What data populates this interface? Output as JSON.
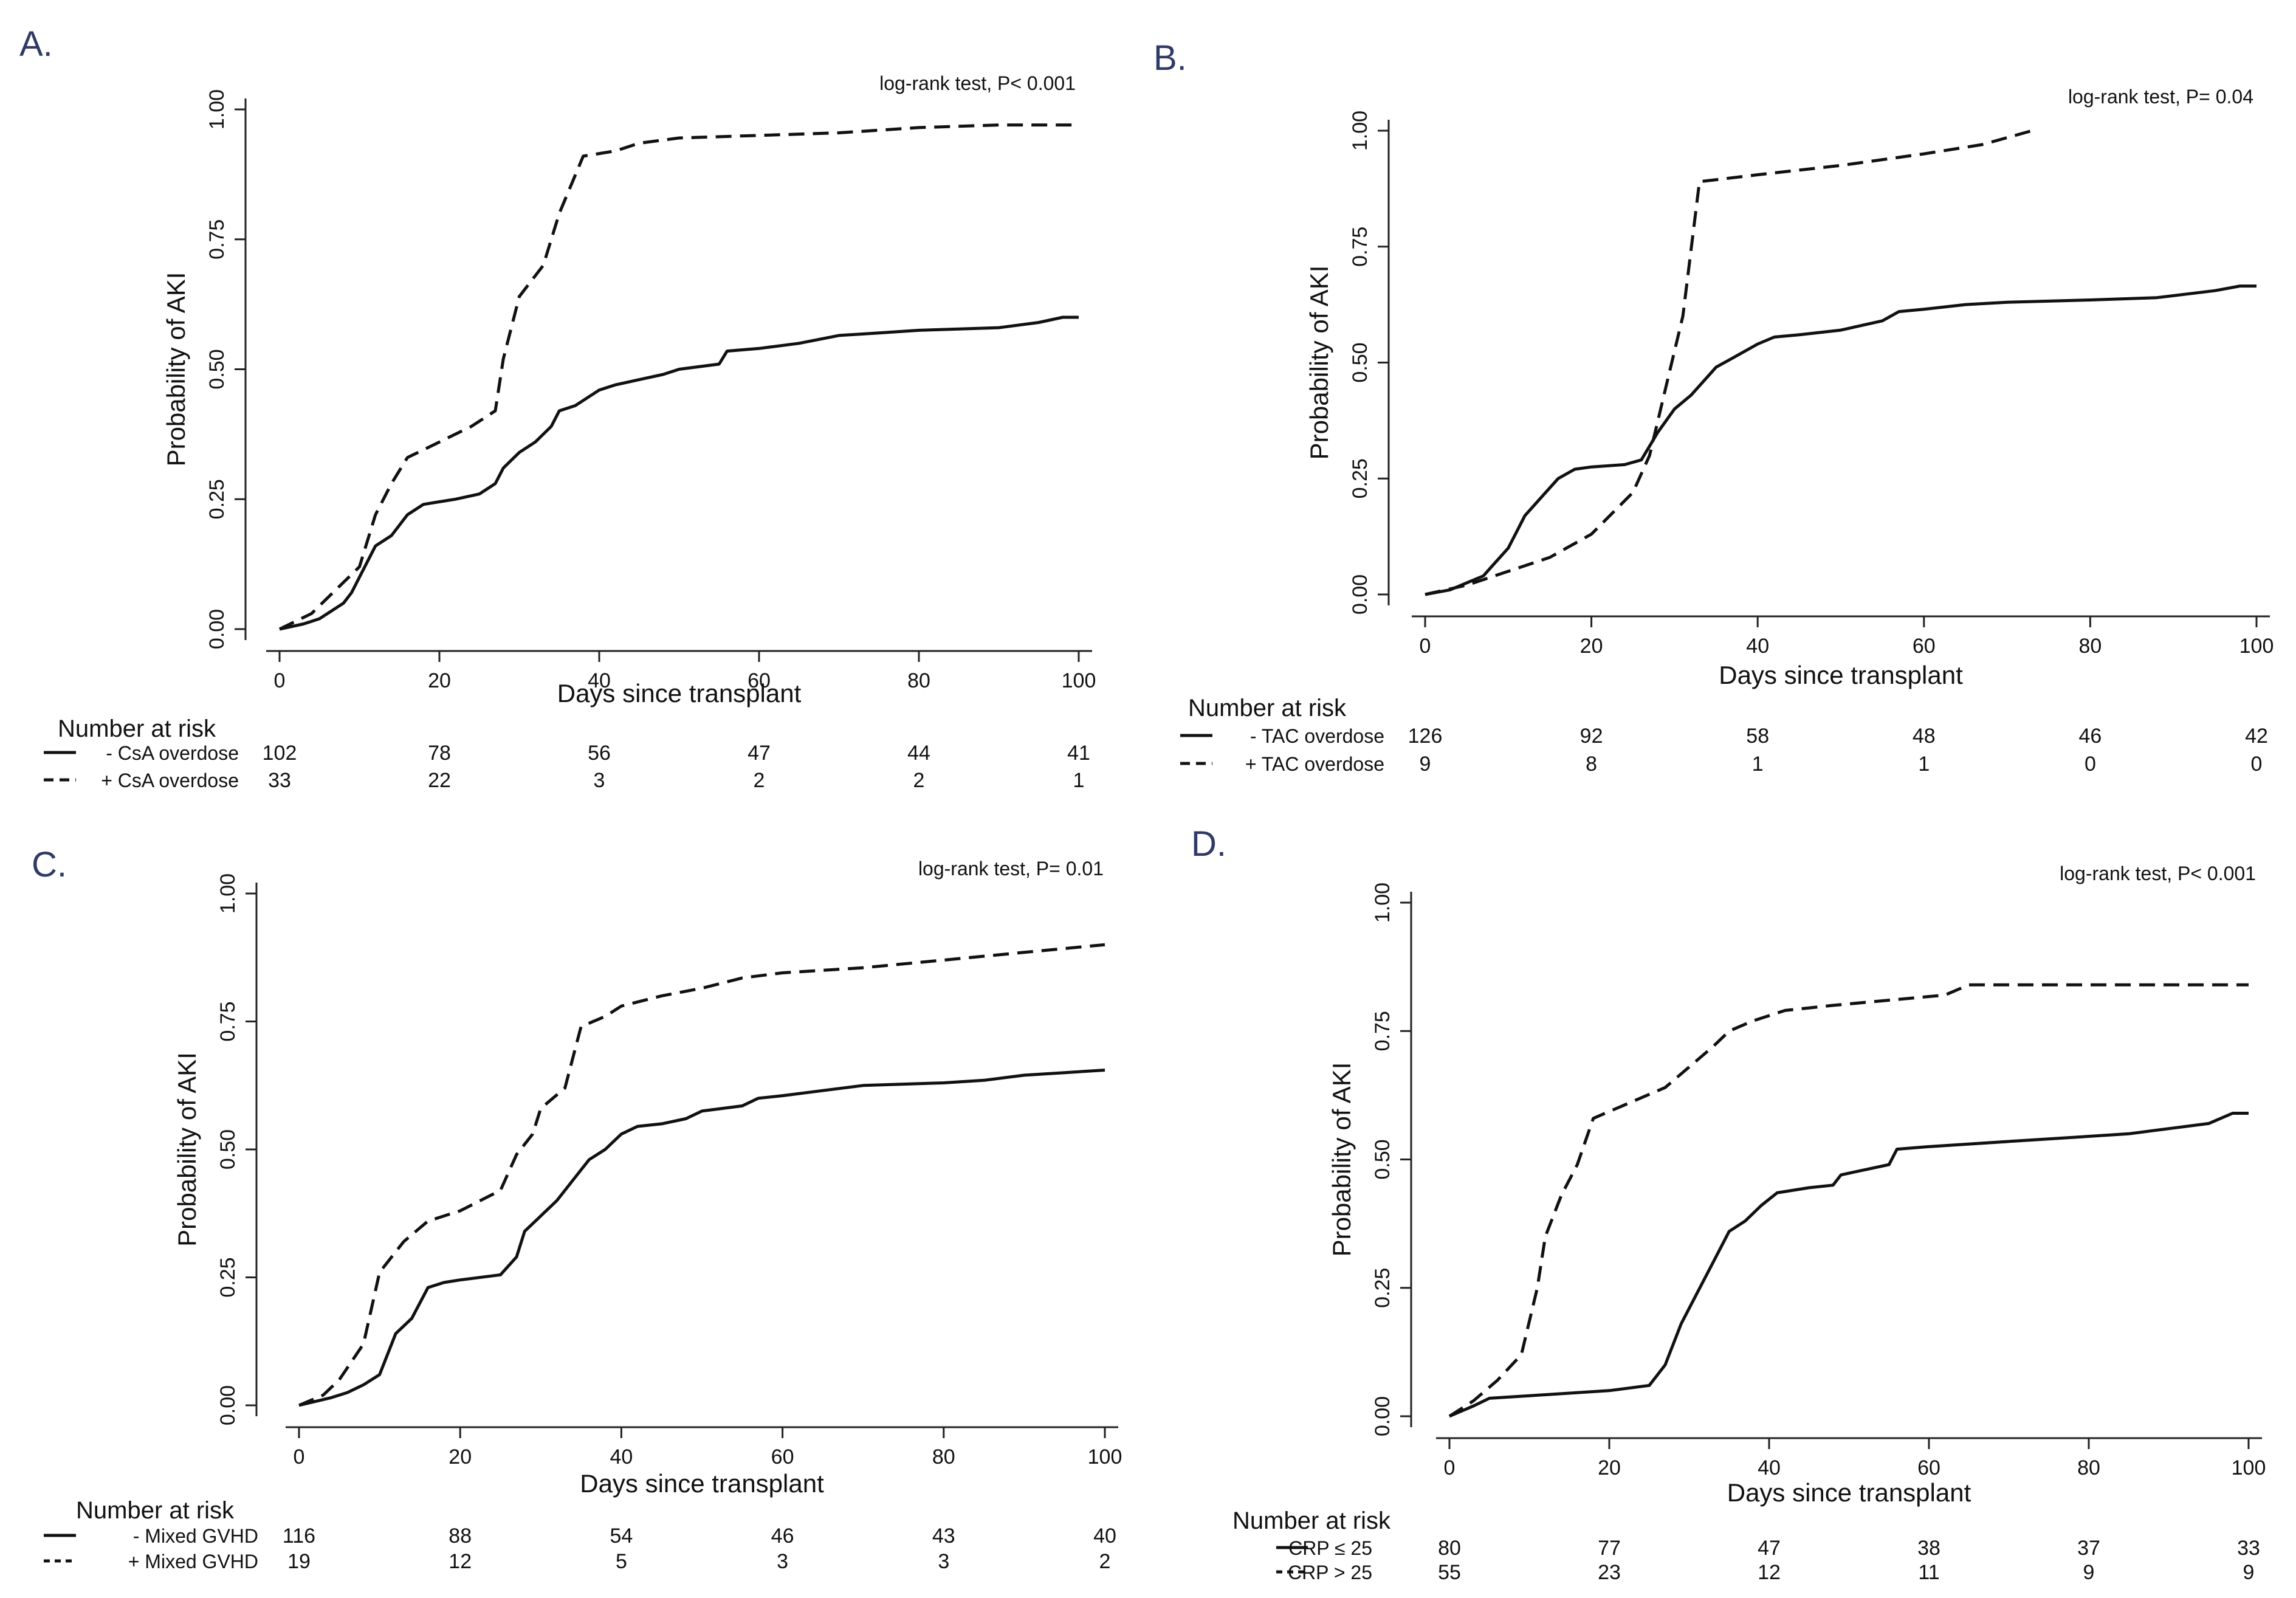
{
  "figure": {
    "x_axis_label": "Days since transplant",
    "y_axis_label": "Probability of AKI",
    "risk_table_title": "Number at risk"
  },
  "chart_data": [
    {
      "panel": "A.",
      "type": "line",
      "title": "",
      "annotation": "log-rank test, P< 0.001",
      "xlabel": "Days since transplant",
      "ylabel": "Probability of AKI",
      "xlim": [
        0,
        100
      ],
      "ylim": [
        0,
        1
      ],
      "x_ticks": [
        "0",
        "20",
        "40",
        "60",
        "80",
        "100"
      ],
      "y_ticks": [
        "0.00",
        "0.25",
        "0.50",
        "0.75",
        "1.00"
      ],
      "x": [
        0,
        20,
        40,
        60,
        80,
        100
      ],
      "series": [
        {
          "name": "- CsA overdose",
          "style": "solid",
          "points": [
            [
              0,
              0
            ],
            [
              3,
              0.01
            ],
            [
              5,
              0.02
            ],
            [
              8,
              0.05
            ],
            [
              9,
              0.07
            ],
            [
              10,
              0.1
            ],
            [
              12,
              0.16
            ],
            [
              14,
              0.18
            ],
            [
              16,
              0.22
            ],
            [
              18,
              0.24
            ],
            [
              20,
              0.245
            ],
            [
              22,
              0.25
            ],
            [
              25,
              0.26
            ],
            [
              27,
              0.28
            ],
            [
              28,
              0.31
            ],
            [
              30,
              0.34
            ],
            [
              32,
              0.36
            ],
            [
              34,
              0.39
            ],
            [
              35,
              0.42
            ],
            [
              37,
              0.43
            ],
            [
              38,
              0.44
            ],
            [
              40,
              0.46
            ],
            [
              42,
              0.47
            ],
            [
              45,
              0.48
            ],
            [
              48,
              0.49
            ],
            [
              50,
              0.5
            ],
            [
              55,
              0.51
            ],
            [
              56,
              0.535
            ],
            [
              60,
              0.54
            ],
            [
              65,
              0.55
            ],
            [
              70,
              0.565
            ],
            [
              75,
              0.57
            ],
            [
              80,
              0.575
            ],
            [
              90,
              0.58
            ],
            [
              95,
              0.59
            ],
            [
              98,
              0.6
            ],
            [
              100,
              0.6
            ]
          ],
          "risk_numbers": [
            "102",
            "78",
            "56",
            "47",
            "44",
            "41"
          ]
        },
        {
          "name": "+ CsA overdose",
          "style": "dashed",
          "points": [
            [
              0,
              0
            ],
            [
              4,
              0.03
            ],
            [
              6,
              0.06
            ],
            [
              10,
              0.12
            ],
            [
              12,
              0.22
            ],
            [
              14,
              0.28
            ],
            [
              16,
              0.33
            ],
            [
              20,
              0.36
            ],
            [
              24,
              0.39
            ],
            [
              27,
              0.42
            ],
            [
              28,
              0.52
            ],
            [
              30,
              0.64
            ],
            [
              32,
              0.68
            ],
            [
              33,
              0.7
            ],
            [
              35,
              0.8
            ],
            [
              38,
              0.91
            ],
            [
              42,
              0.92
            ],
            [
              45,
              0.935
            ],
            [
              50,
              0.945
            ],
            [
              60,
              0.95
            ],
            [
              70,
              0.955
            ],
            [
              80,
              0.965
            ],
            [
              90,
              0.97
            ],
            [
              100,
              0.97
            ]
          ],
          "risk_numbers": [
            "33",
            "22",
            "3",
            "2",
            "2",
            "1"
          ]
        }
      ]
    },
    {
      "panel": "B.",
      "type": "line",
      "title": "",
      "annotation": "log-rank test, P= 0.04",
      "xlabel": "Days since transplant",
      "ylabel": "Probability of AKI",
      "xlim": [
        0,
        100
      ],
      "ylim": [
        0,
        1
      ],
      "x_ticks": [
        "0",
        "20",
        "40",
        "60",
        "80",
        "100"
      ],
      "y_ticks": [
        "0.00",
        "0.25",
        "0.50",
        "0.75",
        "1.00"
      ],
      "x": [
        0,
        20,
        40,
        60,
        80,
        100
      ],
      "series": [
        {
          "name": "- TAC overdose",
          "style": "solid",
          "points": [
            [
              0,
              0
            ],
            [
              3,
              0.01
            ],
            [
              5,
              0.025
            ],
            [
              7,
              0.04
            ],
            [
              8,
              0.06
            ],
            [
              10,
              0.1
            ],
            [
              12,
              0.17
            ],
            [
              14,
              0.21
            ],
            [
              16,
              0.25
            ],
            [
              18,
              0.27
            ],
            [
              20,
              0.275
            ],
            [
              24,
              0.28
            ],
            [
              26,
              0.29
            ],
            [
              27,
              0.32
            ],
            [
              28,
              0.35
            ],
            [
              30,
              0.4
            ],
            [
              32,
              0.43
            ],
            [
              34,
              0.47
            ],
            [
              35,
              0.49
            ],
            [
              37,
              0.51
            ],
            [
              40,
              0.54
            ],
            [
              42,
              0.555
            ],
            [
              45,
              0.56
            ],
            [
              50,
              0.57
            ],
            [
              55,
              0.59
            ],
            [
              57,
              0.61
            ],
            [
              60,
              0.615
            ],
            [
              65,
              0.625
            ],
            [
              70,
              0.63
            ],
            [
              80,
              0.635
            ],
            [
              88,
              0.64
            ],
            [
              95,
              0.655
            ],
            [
              98,
              0.665
            ],
            [
              100,
              0.665
            ]
          ],
          "risk_numbers": [
            "126",
            "92",
            "58",
            "48",
            "46",
            "42"
          ]
        },
        {
          "name": "+ TAC overdose",
          "style": "dashed",
          "points": [
            [
              0,
              0
            ],
            [
              5,
              0.02
            ],
            [
              10,
              0.05
            ],
            [
              15,
              0.08
            ],
            [
              20,
              0.13
            ],
            [
              25,
              0.22
            ],
            [
              27,
              0.3
            ],
            [
              29,
              0.45
            ],
            [
              31,
              0.6
            ],
            [
              33,
              0.89
            ],
            [
              40,
              0.905
            ],
            [
              50,
              0.925
            ],
            [
              60,
              0.95
            ],
            [
              67,
              0.97
            ],
            [
              73,
              1.0
            ]
          ],
          "risk_numbers": [
            "9",
            "8",
            "1",
            "1",
            "0",
            "0"
          ]
        }
      ]
    },
    {
      "panel": "C.",
      "type": "line",
      "title": "",
      "annotation": "log-rank test, P= 0.01",
      "xlabel": "Days since transplant",
      "ylabel": "Probability of AKI",
      "xlim": [
        0,
        100
      ],
      "ylim": [
        0,
        1
      ],
      "x_ticks": [
        "0",
        "20",
        "40",
        "60",
        "80",
        "100"
      ],
      "y_ticks": [
        "0.00",
        "0.25",
        "0.50",
        "0.75",
        "1.00"
      ],
      "x": [
        0,
        20,
        40,
        60,
        80,
        100
      ],
      "series": [
        {
          "name": "- Mixed GVHD",
          "style": "solid",
          "points": [
            [
              0,
              0
            ],
            [
              4,
              0.015
            ],
            [
              6,
              0.025
            ],
            [
              8,
              0.04
            ],
            [
              10,
              0.06
            ],
            [
              12,
              0.14
            ],
            [
              14,
              0.17
            ],
            [
              16,
              0.23
            ],
            [
              18,
              0.24
            ],
            [
              20,
              0.245
            ],
            [
              25,
              0.255
            ],
            [
              27,
              0.29
            ],
            [
              28,
              0.34
            ],
            [
              30,
              0.37
            ],
            [
              32,
              0.4
            ],
            [
              34,
              0.44
            ],
            [
              36,
              0.48
            ],
            [
              38,
              0.5
            ],
            [
              40,
              0.53
            ],
            [
              42,
              0.545
            ],
            [
              45,
              0.55
            ],
            [
              48,
              0.56
            ],
            [
              50,
              0.575
            ],
            [
              55,
              0.585
            ],
            [
              57,
              0.6
            ],
            [
              60,
              0.605
            ],
            [
              65,
              0.615
            ],
            [
              70,
              0.625
            ],
            [
              80,
              0.63
            ],
            [
              85,
              0.635
            ],
            [
              90,
              0.645
            ],
            [
              95,
              0.65
            ],
            [
              100,
              0.655
            ]
          ],
          "risk_numbers": [
            "116",
            "88",
            "54",
            "46",
            "43",
            "40"
          ]
        },
        {
          "name": "+ Mixed GVHD",
          "style": "dashed",
          "points": [
            [
              0,
              0
            ],
            [
              3,
              0.02
            ],
            [
              5,
              0.05
            ],
            [
              8,
              0.12
            ],
            [
              10,
              0.26
            ],
            [
              13,
              0.32
            ],
            [
              16,
              0.36
            ],
            [
              20,
              0.38
            ],
            [
              25,
              0.42
            ],
            [
              27,
              0.49
            ],
            [
              29,
              0.53
            ],
            [
              30,
              0.58
            ],
            [
              33,
              0.62
            ],
            [
              35,
              0.74
            ],
            [
              38,
              0.76
            ],
            [
              40,
              0.78
            ],
            [
              45,
              0.8
            ],
            [
              50,
              0.815
            ],
            [
              55,
              0.835
            ],
            [
              60,
              0.845
            ],
            [
              70,
              0.855
            ],
            [
              80,
              0.87
            ],
            [
              90,
              0.885
            ],
            [
              100,
              0.9
            ]
          ],
          "risk_numbers": [
            "19",
            "12",
            "5",
            "3",
            "3",
            "2"
          ]
        }
      ]
    },
    {
      "panel": "D.",
      "type": "line",
      "title": "",
      "annotation": "log-rank test, P< 0.001",
      "xlabel": "Days since transplant",
      "ylabel": "Probability of AKI",
      "xlim": [
        0,
        100
      ],
      "ylim": [
        0,
        1
      ],
      "x_ticks": [
        "0",
        "20",
        "40",
        "60",
        "80",
        "100"
      ],
      "y_ticks": [
        "0.00",
        "0.25",
        "0.50",
        "0.75",
        "1.00"
      ],
      "x": [
        0,
        20,
        40,
        60,
        80,
        100
      ],
      "series": [
        {
          "name": "CRP ≤ 25",
          "style": "solid",
          "points": [
            [
              0,
              0
            ],
            [
              3,
              0.02
            ],
            [
              5,
              0.035
            ],
            [
              10,
              0.04
            ],
            [
              15,
              0.045
            ],
            [
              20,
              0.05
            ],
            [
              25,
              0.06
            ],
            [
              27,
              0.1
            ],
            [
              29,
              0.18
            ],
            [
              31,
              0.24
            ],
            [
              33,
              0.3
            ],
            [
              35,
              0.36
            ],
            [
              37,
              0.38
            ],
            [
              39,
              0.41
            ],
            [
              41,
              0.435
            ],
            [
              45,
              0.445
            ],
            [
              48,
              0.45
            ],
            [
              49,
              0.47
            ],
            [
              52,
              0.48
            ],
            [
              55,
              0.49
            ],
            [
              56,
              0.52
            ],
            [
              60,
              0.525
            ],
            [
              70,
              0.535
            ],
            [
              80,
              0.545
            ],
            [
              85,
              0.55
            ],
            [
              90,
              0.56
            ],
            [
              95,
              0.57
            ],
            [
              98,
              0.59
            ],
            [
              100,
              0.59
            ]
          ],
          "risk_numbers": [
            "80",
            "77",
            "47",
            "38",
            "37",
            "33"
          ]
        },
        {
          "name": "CRP > 25",
          "style": "dashed",
          "points": [
            [
              0,
              0
            ],
            [
              3,
              0.03
            ],
            [
              6,
              0.07
            ],
            [
              9,
              0.12
            ],
            [
              11,
              0.25
            ],
            [
              12,
              0.35
            ],
            [
              14,
              0.43
            ],
            [
              16,
              0.49
            ],
            [
              18,
              0.58
            ],
            [
              21,
              0.6
            ],
            [
              24,
              0.62
            ],
            [
              27,
              0.64
            ],
            [
              30,
              0.68
            ],
            [
              33,
              0.72
            ],
            [
              35,
              0.75
            ],
            [
              38,
              0.77
            ],
            [
              42,
              0.79
            ],
            [
              48,
              0.8
            ],
            [
              55,
              0.81
            ],
            [
              62,
              0.82
            ],
            [
              65,
              0.84
            ],
            [
              75,
              0.84
            ],
            [
              100,
              0.84
            ]
          ],
          "risk_numbers": [
            "55",
            "23",
            "12",
            "11",
            "9",
            "9"
          ]
        }
      ]
    }
  ]
}
